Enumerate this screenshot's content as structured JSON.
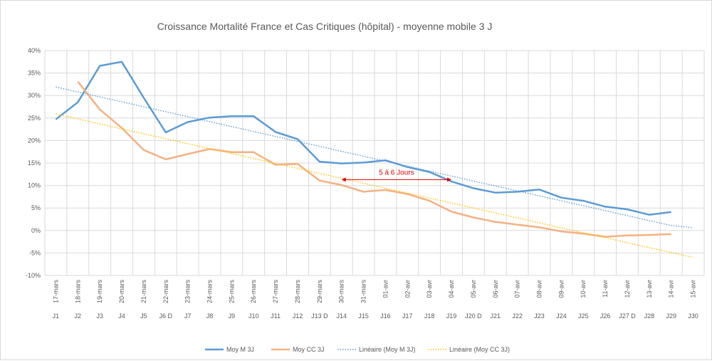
{
  "chart_data": {
    "type": "line",
    "title": "Croissance Mortalité France et Cas Critiques  (hôpital) - moyenne mobile 3 J",
    "xlabel": "",
    "ylabel": "",
    "ylim": [
      -10,
      40
    ],
    "yticks": [
      "40%",
      "35%",
      "30%",
      "25%",
      "20%",
      "15%",
      "10%",
      "5%",
      "0%",
      "-5%",
      "-10%"
    ],
    "grid": true,
    "legend_position": "bottom",
    "categories_date": [
      "17-mars",
      "18-mars",
      "19-mars",
      "20-mars",
      "21-mars",
      "22-mars",
      "23-mars",
      "24-mars",
      "25-mars",
      "26-mars",
      "27-mars",
      "28-mars",
      "29-mars",
      "30-mars",
      "31-mars",
      "01-avr",
      "02-avr",
      "03-avr",
      "04-avr",
      "05-avr",
      "06-avr",
      "07-avr",
      "08-avr",
      "09-avr",
      "10-avr",
      "11-avr",
      "12-avr",
      "13-avr",
      "14-avr",
      "15-avr"
    ],
    "categories_day": [
      "J1",
      "J2",
      "J3",
      "J4",
      "J5",
      "J6 D",
      "J7",
      "J8",
      "J9",
      "J10",
      "J11",
      "J12",
      "J13 D",
      "J14",
      "J15",
      "J16",
      "J17",
      "J18",
      "J19",
      "J20 D",
      "J21",
      "J22",
      "J23",
      "J24",
      "J25",
      "J26",
      "J27 D",
      "J28",
      "J29",
      "J30"
    ],
    "series": [
      {
        "name": "Moy M 3J",
        "color": "#5b9bd5",
        "values": [
          24.7,
          28.5,
          36.6,
          37.5,
          29.5,
          21.8,
          24.1,
          25.1,
          25.4,
          25.4,
          21.9,
          20.3,
          15.3,
          14.9,
          15.1,
          15.6,
          14.1,
          13.0,
          10.9,
          9.4,
          8.4,
          8.6,
          9.1,
          7.3,
          6.6,
          5.3,
          4.7,
          3.5,
          4.1,
          null
        ]
      },
      {
        "name": "Moy CC 3J",
        "color": "#f4b183",
        "values": [
          null,
          33.1,
          26.9,
          22.8,
          17.9,
          15.8,
          17.0,
          18.1,
          17.4,
          17.4,
          14.6,
          14.8,
          11.1,
          10.1,
          8.6,
          9.0,
          8.1,
          6.6,
          4.2,
          2.9,
          1.9,
          1.3,
          0.7,
          -0.2,
          -0.7,
          -1.4,
          -1.1,
          -1.0,
          -0.8,
          null
        ]
      },
      {
        "name": "Linéaire (Moy M 3J)",
        "color": "#5b9bd5",
        "values": [
          31.9,
          30.8,
          29.7,
          28.6,
          27.5,
          26.4,
          25.3,
          24.2,
          23.1,
          22.0,
          20.9,
          19.8,
          18.7,
          17.6,
          16.5,
          15.4,
          14.3,
          13.2,
          12.1,
          11.0,
          9.9,
          8.8,
          7.7,
          6.6,
          5.5,
          4.4,
          3.3,
          2.2,
          1.1,
          0.6
        ]
      },
      {
        "name": "Linéaire (Moy CC 3J)",
        "color": "#ffc000",
        "values": [
          25.9,
          24.8,
          23.7,
          22.6,
          21.5,
          20.4,
          19.3,
          18.2,
          17.1,
          16.0,
          14.9,
          13.8,
          12.7,
          11.6,
          10.5,
          9.4,
          8.3,
          7.2,
          6.1,
          5.0,
          3.9,
          2.8,
          1.7,
          0.6,
          -0.5,
          -1.6,
          -2.7,
          -3.8,
          -4.9,
          -6.0
        ]
      }
    ],
    "annotation": {
      "text": "5 à 6 Jours",
      "color": "#e00000",
      "from_category": "J14",
      "to_category": "J19",
      "y": 11.3
    }
  }
}
